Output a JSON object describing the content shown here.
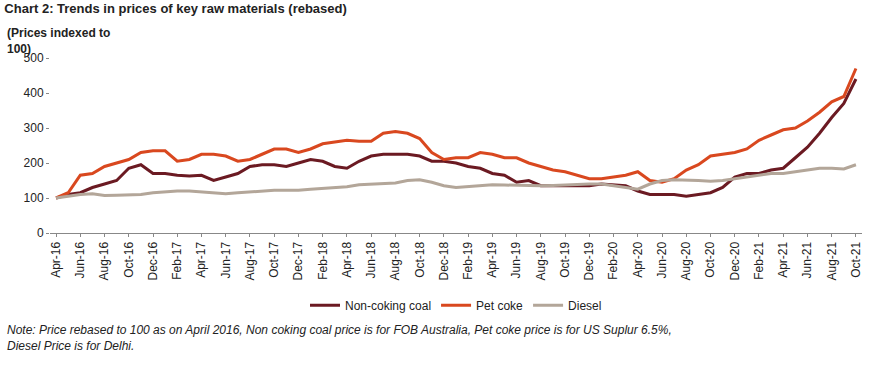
{
  "chart_data": {
    "type": "line",
    "title": "Chart 2: Trends in prices of key raw materials (rebased)",
    "ylabel": [
      "(Prices indexed to",
      "100)"
    ],
    "note": [
      "Note: Price rebased to 100 as on April 2016, Non coking coal price is for FOB Australia, Pet coke price is for US Suplur 6.5%,",
      "Diesel Price is for Delhi."
    ],
    "categories": [
      "Apr-16",
      null,
      "Jun-16",
      null,
      "Aug-16",
      null,
      "Oct-16",
      null,
      "Dec-16",
      null,
      "Feb-17",
      null,
      "Apr-17",
      null,
      "Jun-17",
      null,
      "Aug-17",
      null,
      "Oct-17",
      null,
      "Dec-17",
      null,
      "Feb-18",
      null,
      "Apr-18",
      null,
      "Jun-18",
      null,
      "Aug-18",
      null,
      "Oct-18",
      null,
      "Dec-18",
      null,
      "Feb-19",
      null,
      "Apr-19",
      null,
      "Jun-19",
      null,
      "Aug-19",
      null,
      "Oct-19",
      null,
      "Dec-19",
      null,
      "Feb-20",
      null,
      "Apr-20",
      null,
      "Jun-20",
      null,
      "Aug-20",
      null,
      "Oct-20",
      null,
      "Dec-20",
      null,
      "Feb-21",
      null,
      "Apr-21",
      null,
      "Jun-21",
      null,
      "Aug-21",
      null,
      "Oct-21"
    ],
    "series": [
      {
        "name": "Non-coking coal",
        "color": "#6b1a22",
        "values": [
          100,
          110,
          115,
          130,
          140,
          150,
          185,
          195,
          170,
          170,
          165,
          163,
          165,
          150,
          160,
          170,
          190,
          195,
          195,
          190,
          200,
          210,
          205,
          190,
          185,
          205,
          220,
          225,
          225,
          225,
          220,
          205,
          205,
          200,
          190,
          185,
          170,
          165,
          145,
          150,
          135,
          135,
          137,
          137,
          135,
          140,
          138,
          135,
          120,
          110,
          110,
          110,
          105,
          110,
          115,
          130,
          160,
          170,
          170,
          180,
          185,
          215,
          245,
          285,
          330,
          370,
          440
        ]
      },
      {
        "name": "Pet coke",
        "color": "#d9481f",
        "values": [
          100,
          115,
          165,
          170,
          190,
          200,
          210,
          230,
          235,
          235,
          205,
          210,
          225,
          225,
          220,
          205,
          210,
          225,
          240,
          240,
          230,
          240,
          255,
          260,
          265,
          262,
          262,
          285,
          290,
          285,
          270,
          230,
          210,
          215,
          215,
          230,
          225,
          215,
          215,
          200,
          190,
          180,
          175,
          165,
          155,
          155,
          160,
          165,
          175,
          150,
          145,
          155,
          180,
          195,
          220,
          225,
          230,
          240,
          265,
          280,
          295,
          300,
          320,
          345,
          375,
          390,
          470
        ]
      },
      {
        "name": "Diesel",
        "color": "#b3a699",
        "values": [
          100,
          105,
          110,
          112,
          107,
          108,
          110,
          110,
          115,
          118,
          120,
          120,
          118,
          115,
          112,
          115,
          118,
          120,
          122,
          122,
          122,
          125,
          128,
          130,
          132,
          138,
          140,
          140,
          143,
          150,
          152,
          145,
          135,
          130,
          132,
          135,
          138,
          137,
          136,
          135,
          135,
          136,
          138,
          138,
          140,
          140,
          135,
          130,
          125,
          140,
          150,
          152,
          152,
          150,
          148,
          150,
          155,
          160,
          165,
          170,
          170,
          175,
          180,
          185,
          185,
          183,
          195
        ]
      }
    ],
    "ylim": [
      0,
      500
    ],
    "yticks": [
      0,
      100,
      200,
      300,
      400,
      500
    ],
    "grid": false,
    "legend": "bottom"
  }
}
